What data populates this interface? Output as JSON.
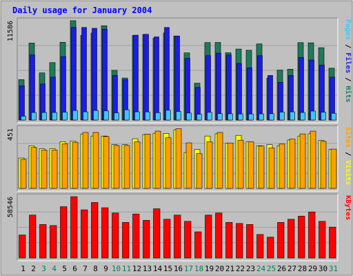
{
  "chart_data": {
    "type": "bar",
    "title": "Daily usage for January 2004",
    "categories": [
      "1",
      "2",
      "3",
      "4",
      "5",
      "6",
      "7",
      "8",
      "9",
      "10",
      "11",
      "12",
      "13",
      "14",
      "15",
      "16",
      "17",
      "18",
      "19",
      "20",
      "21",
      "22",
      "23",
      "24",
      "25",
      "26",
      "27",
      "28",
      "29",
      "30",
      "31"
    ],
    "weekend_days": [
      "3",
      "4",
      "10",
      "11",
      "17",
      "18",
      "24",
      "25",
      "31"
    ],
    "panels": [
      {
        "id": "hits",
        "ymax_label": "11586",
        "ymax": 11586,
        "ylabel_parts": [
          "Pages",
          "Files",
          "Hits"
        ],
        "series": [
          {
            "name": "Hits",
            "color": "#1e7a5a",
            "values": [
              4710,
              8980,
              5500,
              6700,
              9070,
              11586,
              9880,
              10140,
              11000,
              5800,
              4900,
              9860,
              9980,
              9540,
              10150,
              9800,
              7830,
              4300,
              9040,
              9050,
              7850,
              8280,
              8140,
              8880,
              4900,
              5830,
              5930,
              9030,
              9010,
              8440,
              6050
            ]
          },
          {
            "name": "Files",
            "color": "#1c1ce8",
            "values": [
              4000,
              7600,
              4200,
              5000,
              7400,
              10800,
              10800,
              10700,
              10600,
              5200,
              4700,
              9900,
              10000,
              9700,
              10800,
              9800,
              7200,
              3800,
              7500,
              7800,
              7600,
              6600,
              6100,
              7500,
              5200,
              4400,
              5200,
              7300,
              7000,
              6400,
              5000
            ]
          },
          {
            "name": "Pages",
            "color": "#3ec6ff",
            "values": [
              450,
              880,
              880,
              880,
              920,
              1120,
              960,
              1120,
              1080,
              840,
              1200,
              960,
              950,
              860,
              1150,
              1000,
              820,
              680,
              900,
              750,
              730,
              710,
              710,
              720,
              740,
              930,
              960,
              880,
              1050,
              920,
              790
            ]
          }
        ]
      },
      {
        "id": "visits",
        "ymax_label": "451",
        "ymax": 451,
        "ylabel_parts": [
          "Sites",
          "Visits"
        ],
        "series": [
          {
            "name": "Visits",
            "color": "#ffff00",
            "values": [
              228,
              320,
              298,
              298,
              350,
              356,
              408,
              393,
              393,
              328,
              328,
              373,
              404,
              413,
              413,
              440,
              269,
              293,
              393,
              410,
              339,
              398,
              349,
              320,
              328,
              320,
              363,
              393,
              410,
              360,
              293
            ]
          },
          {
            "name": "Sites",
            "color": "#ff9f00",
            "values": [
              218,
              308,
              288,
              288,
              335,
              346,
              420,
              420,
              390,
              322,
              322,
              350,
              408,
              430,
              380,
              448,
              342,
              262,
              350,
              420,
              341,
              362,
              350,
              318,
              304,
              333,
              370,
              409,
              430,
              353,
              295
            ]
          }
        ]
      },
      {
        "id": "kbytes",
        "ymax_label": "58546",
        "ymax": 58546,
        "ylabel_parts": [
          "KBytes"
        ],
        "series": [
          {
            "name": "KBytes",
            "color": "#ff0000",
            "values": [
              22000,
              41000,
              32000,
              31000,
              49000,
              58546,
              46000,
              53000,
              48000,
              43000,
              34000,
              42000,
              36000,
              47000,
              37000,
              41000,
              35000,
              25000,
              41000,
              43000,
              34000,
              33000,
              32000,
              22500,
              20000,
              34000,
              37000,
              40000,
              44000,
              35000,
              29500
            ]
          }
        ]
      }
    ]
  }
}
